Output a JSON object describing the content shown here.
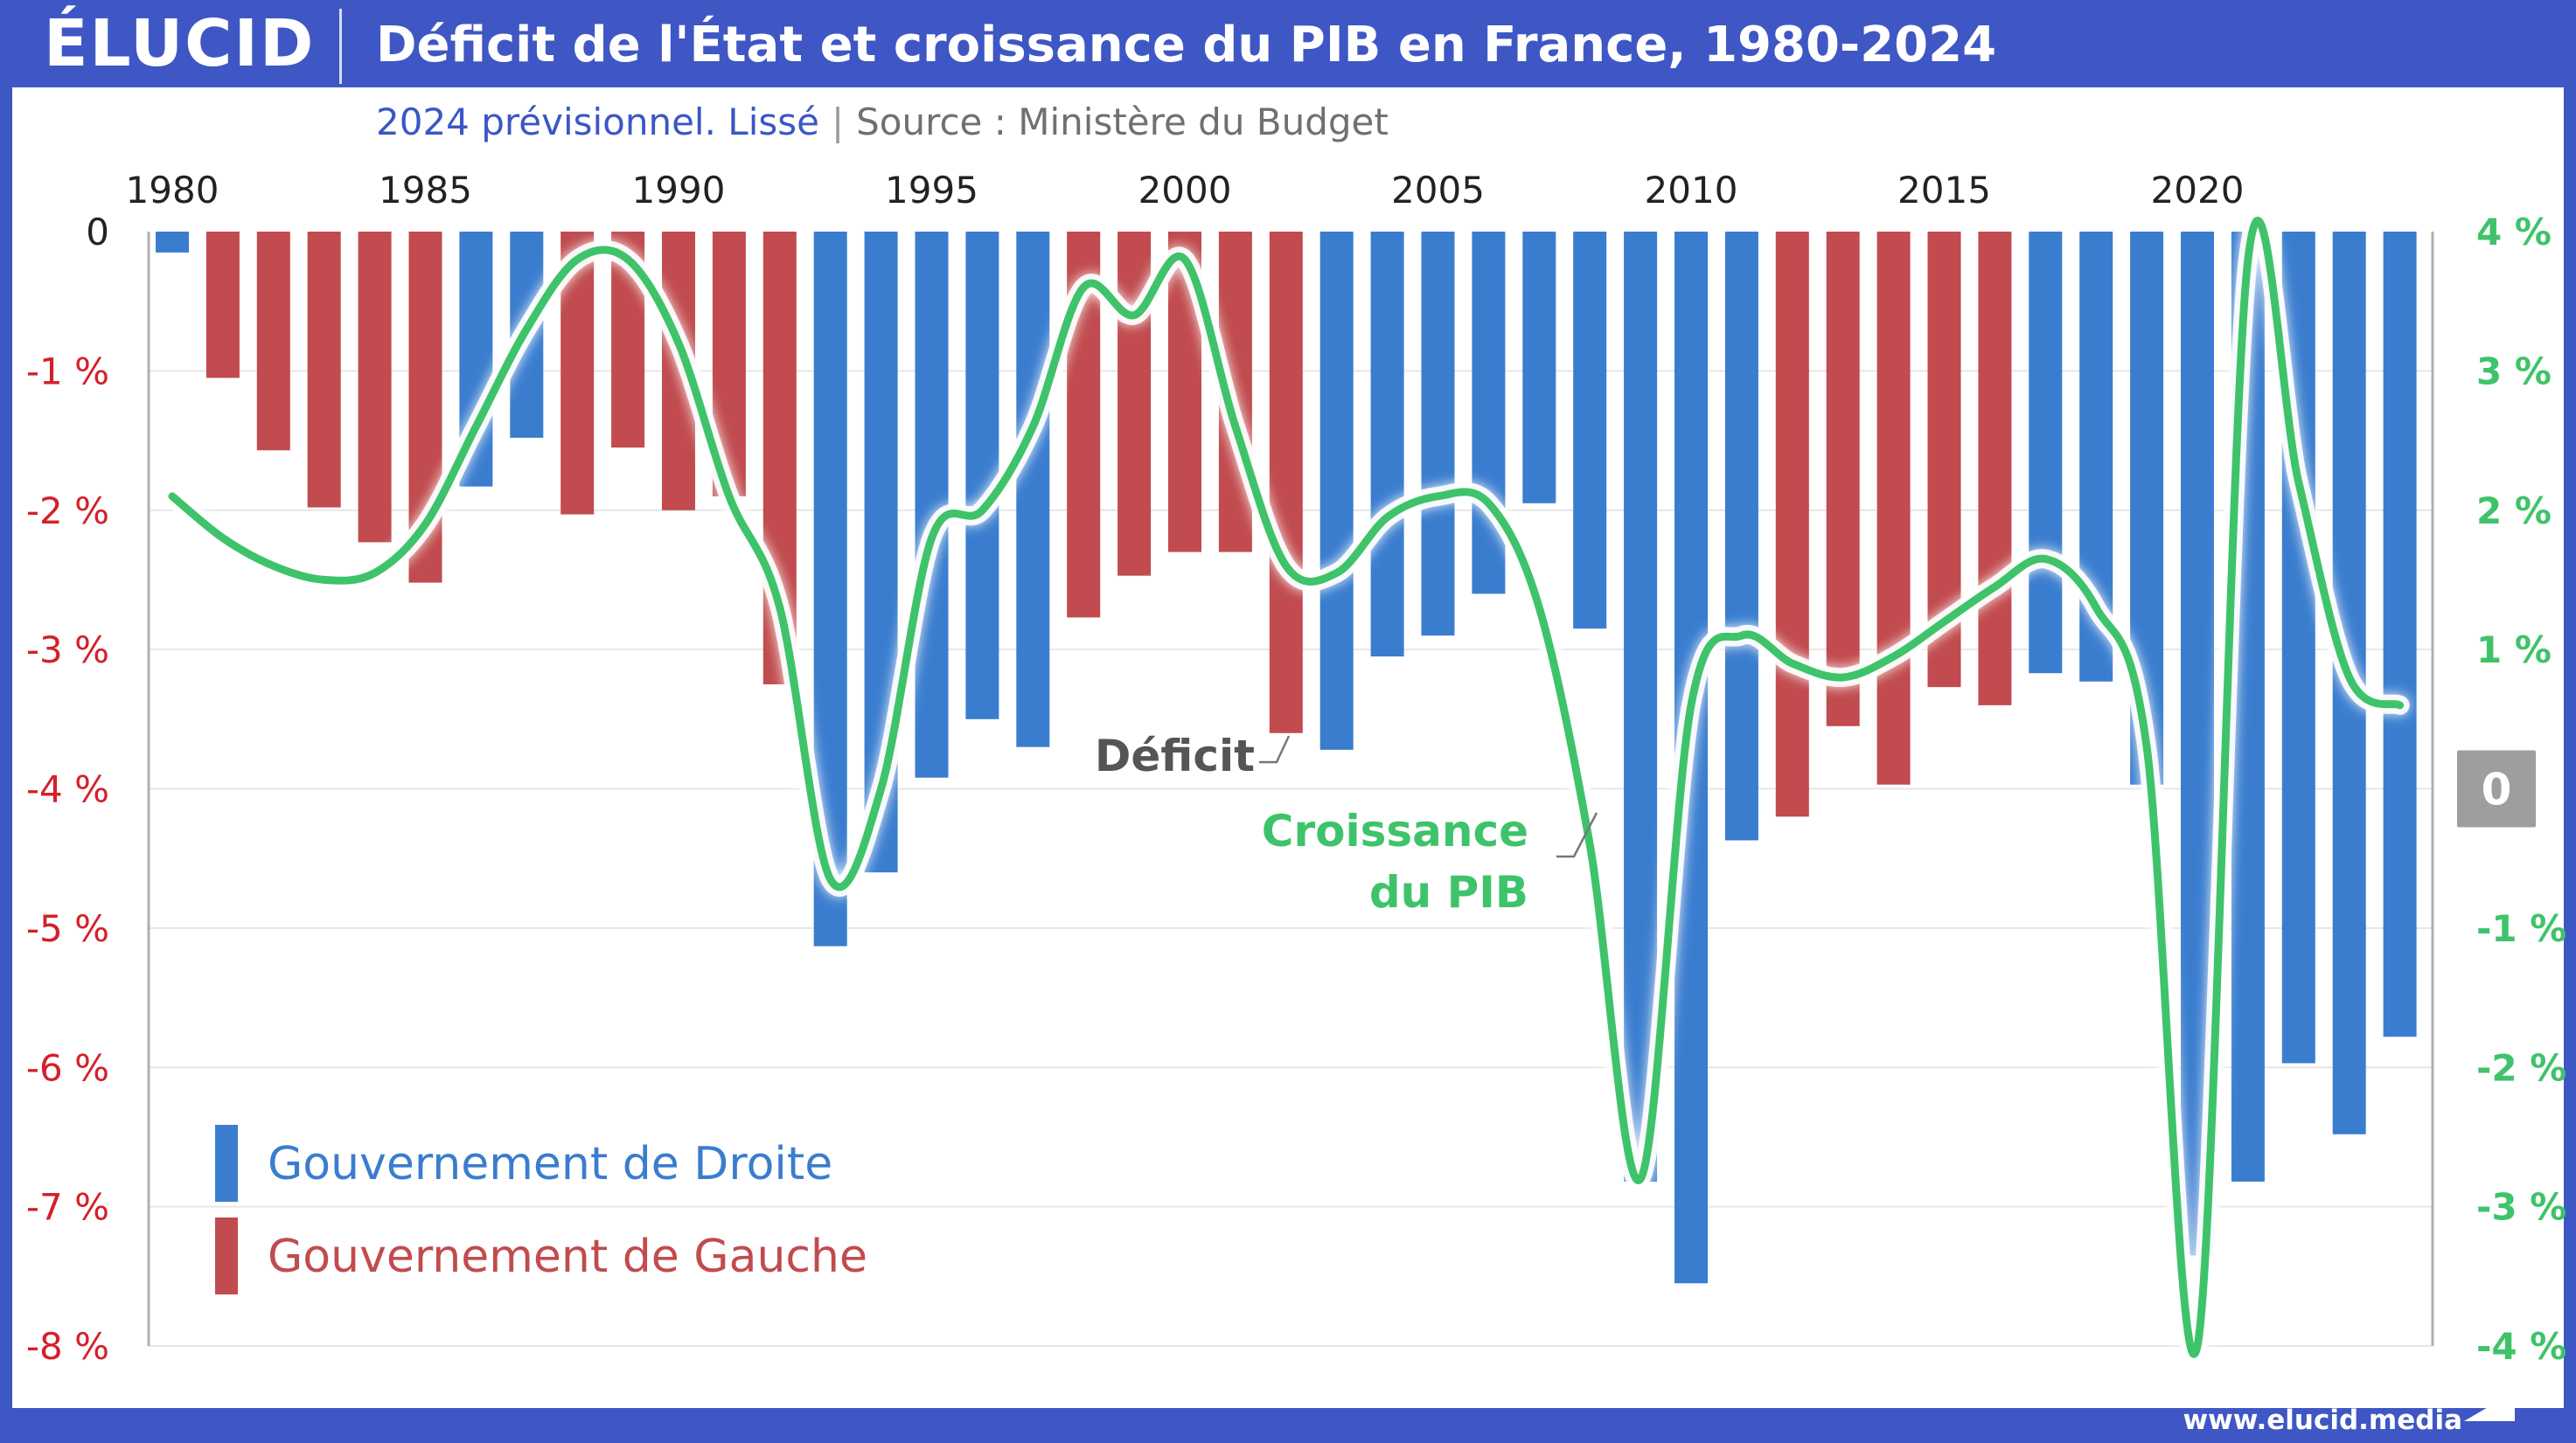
{
  "header": {
    "logo": "ÉLUCID",
    "title": "Déficit de l'État et croissance du PIB en France, 1980-2024"
  },
  "subtitle": {
    "note": "2024 prévisionnel. Lissé",
    "separator": "|",
    "source": "Source : Ministère du Budget"
  },
  "footer": {
    "url": "www.elucid.media"
  },
  "legend": {
    "right": "Gouvernement de Droite",
    "left": "Gouvernement de Gauche"
  },
  "annotations": {
    "deficit": "Déficit",
    "growth_line1": "Croissance",
    "growth_line2": "du PIB",
    "zero_badge": "0"
  },
  "colors": {
    "right_gov": "#3a7dcf",
    "left_gov": "#c14b4e",
    "growth": "#3fc36a",
    "deficit_label": "#555555",
    "header_bg": "#3f57c4",
    "left_axis_text": "#d4202a",
    "zero_badge_bg": "#9e9e9e"
  },
  "chart_data": {
    "type": "bar",
    "years": [
      1980,
      1981,
      1982,
      1983,
      1984,
      1985,
      1986,
      1987,
      1988,
      1989,
      1990,
      1991,
      1992,
      1993,
      1994,
      1995,
      1996,
      1997,
      1998,
      1999,
      2000,
      2001,
      2002,
      2003,
      2004,
      2005,
      2006,
      2007,
      2008,
      2009,
      2010,
      2011,
      2012,
      2013,
      2014,
      2015,
      2016,
      2017,
      2018,
      2019,
      2020,
      2021,
      2022,
      2023,
      2024
    ],
    "x_tick_labels": [
      "1980",
      "1985",
      "1990",
      "1995",
      "2000",
      "2005",
      "2010",
      "2015",
      "2020"
    ],
    "series": [
      {
        "name": "Déficit",
        "axis": "left",
        "values": [
          -0.15,
          -1.05,
          -1.57,
          -1.98,
          -2.23,
          -2.52,
          -1.83,
          -1.48,
          -2.03,
          -1.55,
          -2.0,
          -1.9,
          -3.25,
          -5.13,
          -4.6,
          -3.92,
          -3.5,
          -3.7,
          -2.77,
          -2.47,
          -2.3,
          -2.3,
          -3.6,
          -3.72,
          -3.05,
          -2.9,
          -2.6,
          -1.95,
          -2.85,
          -6.82,
          -7.55,
          -4.37,
          -4.2,
          -3.55,
          -3.97,
          -3.27,
          -3.4,
          -3.17,
          -3.23,
          -3.97,
          -7.35,
          -6.82,
          -5.97,
          -6.48,
          -5.78
        ],
        "government": [
          "D",
          "G",
          "G",
          "G",
          "G",
          "G",
          "D",
          "D",
          "G",
          "G",
          "G",
          "G",
          "G",
          "D",
          "D",
          "D",
          "D",
          "D",
          "G",
          "G",
          "G",
          "G",
          "G",
          "D",
          "D",
          "D",
          "D",
          "D",
          "D",
          "D",
          "D",
          "D",
          "G",
          "G",
          "G",
          "G",
          "G",
          "D",
          "D",
          "D",
          "D",
          "D",
          "D",
          "D",
          "D"
        ]
      },
      {
        "name": "Croissance du PIB",
        "axis": "right",
        "values": [
          2.1,
          1.8,
          1.6,
          1.5,
          1.55,
          1.9,
          2.6,
          3.3,
          3.8,
          3.8,
          3.2,
          2.1,
          1.3,
          -0.65,
          0.0,
          1.8,
          2.0,
          2.6,
          3.6,
          3.4,
          3.8,
          2.6,
          1.6,
          1.55,
          1.95,
          2.1,
          2.05,
          1.3,
          -0.4,
          -2.8,
          0.6,
          1.1,
          0.9,
          0.8,
          0.95,
          1.2,
          1.45,
          1.65,
          1.3,
          0.3,
          -4.0,
          3.8,
          2.2,
          0.8,
          0.6
        ]
      }
    ],
    "y_left": {
      "min": -8,
      "max": 0,
      "ticks": [
        "0",
        "-1 %",
        "-2 %",
        "-3 %",
        "-4 %",
        "-5 %",
        "-6 %",
        "-7 %",
        "-8 %"
      ]
    },
    "y_right": {
      "min": -4,
      "max": 4,
      "ticks": [
        "4 %",
        "3 %",
        "2 %",
        "1 %",
        "0",
        "-1 %",
        "-2 %",
        "-3 %",
        "-4 %"
      ]
    },
    "grid": true,
    "legend_position": "bottom-left"
  }
}
